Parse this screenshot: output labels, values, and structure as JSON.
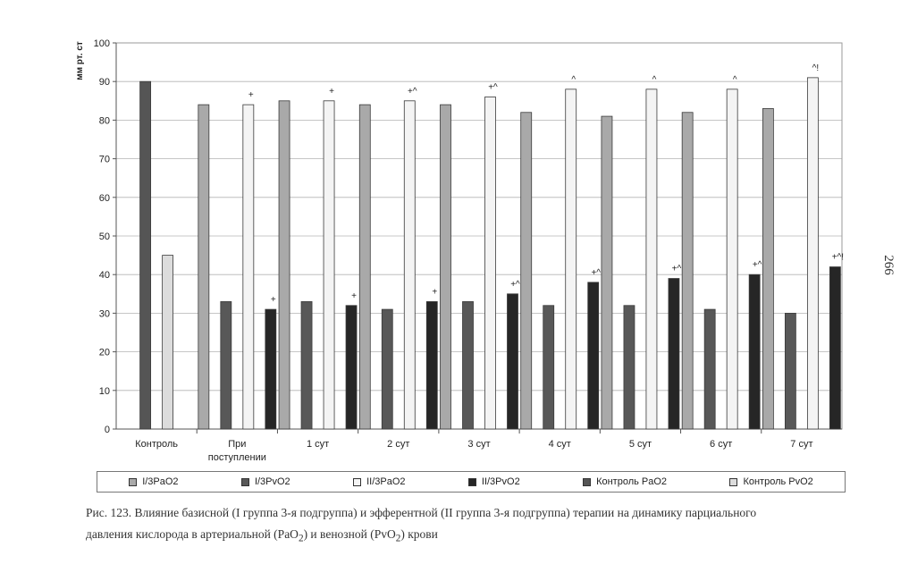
{
  "page_number": "266",
  "chart_data": {
    "type": "bar",
    "title": "",
    "ylabel": "мм рт. ст",
    "xlabel": "",
    "ylim": [
      0,
      100
    ],
    "yticks": [
      0,
      10,
      20,
      30,
      40,
      50,
      60,
      70,
      80,
      90,
      100
    ],
    "grid": true,
    "legend_position": "bottom",
    "categories": [
      "Контроль",
      "При\nпоступлении",
      "1 сут",
      "2 сут",
      "3 сут",
      "4 сут",
      "5 сут",
      "6 сут",
      "7 сут"
    ],
    "series": [
      {
        "name": "I/3PaO2",
        "color": "#a9a9a9",
        "values": [
          null,
          84,
          85,
          84,
          84,
          82,
          81,
          82,
          83
        ]
      },
      {
        "name": "I/3PvO2",
        "color": "#585858",
        "values": [
          null,
          33,
          33,
          31,
          33,
          32,
          32,
          31,
          30
        ]
      },
      {
        "name": "II/3PaO2",
        "color": "#f4f4f4",
        "values": [
          null,
          84,
          85,
          85,
          86,
          88,
          88,
          88,
          91
        ]
      },
      {
        "name": "II/3PvO2",
        "color": "#262626",
        "values": [
          null,
          31,
          32,
          33,
          35,
          38,
          39,
          40,
          42
        ]
      },
      {
        "name": "Контроль PaO2",
        "color": "#555555",
        "values": [
          90,
          null,
          null,
          null,
          null,
          null,
          null,
          null,
          null
        ]
      },
      {
        "name": "Контроль PvO2",
        "color": "#dcdcdc",
        "values": [
          45,
          null,
          null,
          null,
          null,
          null,
          null,
          null,
          null
        ]
      }
    ],
    "annotations": [
      {
        "series": "II/3PaO2",
        "category": "При\nпоступлении",
        "text": "+"
      },
      {
        "series": "II/3PaO2",
        "category": "1 сут",
        "text": "+"
      },
      {
        "series": "II/3PaO2",
        "category": "2 сут",
        "text": "+^"
      },
      {
        "series": "II/3PaO2",
        "category": "3 сут",
        "text": "+^"
      },
      {
        "series": "II/3PaO2",
        "category": "4 сут",
        "text": "^"
      },
      {
        "series": "II/3PaO2",
        "category": "5 сут",
        "text": "^"
      },
      {
        "series": "II/3PaO2",
        "category": "6 сут",
        "text": "^"
      },
      {
        "series": "II/3PaO2",
        "category": "7 сут",
        "text": "^!"
      },
      {
        "series": "II/3PvO2",
        "category": "При\nпоступлении",
        "text": "+"
      },
      {
        "series": "II/3PvO2",
        "category": "1 сут",
        "text": "+"
      },
      {
        "series": "II/3PvO2",
        "category": "2 сут",
        "text": "+"
      },
      {
        "series": "II/3PvO2",
        "category": "3 сут",
        "text": "+^"
      },
      {
        "series": "II/3PvO2",
        "category": "4 сут",
        "text": "+^"
      },
      {
        "series": "II/3PvO2",
        "category": "5 сут",
        "text": "+^"
      },
      {
        "series": "II/3PvO2",
        "category": "6 сут",
        "text": "+^"
      },
      {
        "series": "II/3PvO2",
        "category": "7 сут",
        "text": "+^!"
      }
    ]
  },
  "caption": {
    "line1": "Рис. 123. Влияние базисной (I группа 3-я подгруппа) и эфферентной (II группа 3-я подгруппа) терапии на динамику парциального",
    "line2_before": "давления кислорода в артериальной (PaO",
    "line2_sub1": "2",
    "line2_middle": ") и венозной (PvO",
    "line2_sub2": "2",
    "line2_after": ") крови"
  }
}
